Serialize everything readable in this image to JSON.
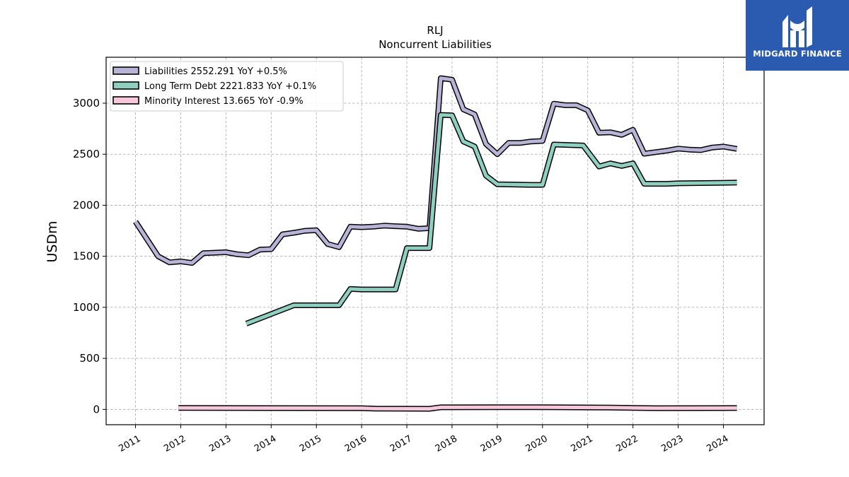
{
  "chart_data": {
    "type": "line",
    "title": "RLJ",
    "subtitle": "Noncurrent  Liabilities",
    "xlabel": "",
    "ylabel": "USDm",
    "ylim": [
      -150,
      3450
    ],
    "xlim": [
      2010.35,
      2024.9
    ],
    "yticks": [
      0,
      500,
      1000,
      1500,
      2000,
      2500,
      3000
    ],
    "xticks": [
      "2011",
      "2012",
      "2013",
      "2014",
      "2015",
      "2016",
      "2017",
      "2018",
      "2019",
      "2020",
      "2021",
      "2022",
      "2023",
      "2024"
    ],
    "grid": true,
    "legend_position": "top-left",
    "series": [
      {
        "name": "Liabilities  2552.291 YoY +0.5%",
        "color": "#b8b4d8",
        "points": [
          [
            2011.0,
            1840
          ],
          [
            2011.5,
            1500
          ],
          [
            2011.75,
            1440
          ],
          [
            2012.0,
            1450
          ],
          [
            2012.25,
            1435
          ],
          [
            2012.5,
            1530
          ],
          [
            2012.75,
            1535
          ],
          [
            2013.0,
            1540
          ],
          [
            2013.25,
            1520
          ],
          [
            2013.5,
            1510
          ],
          [
            2013.75,
            1565
          ],
          [
            2014.0,
            1570
          ],
          [
            2014.25,
            1715
          ],
          [
            2014.5,
            1730
          ],
          [
            2014.75,
            1750
          ],
          [
            2015.0,
            1755
          ],
          [
            2015.25,
            1620
          ],
          [
            2015.5,
            1590
          ],
          [
            2015.75,
            1790
          ],
          [
            2016.0,
            1785
          ],
          [
            2016.25,
            1790
          ],
          [
            2016.5,
            1800
          ],
          [
            2016.75,
            1795
          ],
          [
            2017.0,
            1790
          ],
          [
            2017.25,
            1770
          ],
          [
            2017.5,
            1775
          ],
          [
            2017.75,
            3245
          ],
          [
            2018.0,
            3230
          ],
          [
            2018.25,
            2940
          ],
          [
            2018.5,
            2890
          ],
          [
            2018.75,
            2600
          ],
          [
            2019.0,
            2500
          ],
          [
            2019.25,
            2610
          ],
          [
            2019.5,
            2610
          ],
          [
            2019.75,
            2625
          ],
          [
            2020.0,
            2630
          ],
          [
            2020.25,
            2995
          ],
          [
            2020.5,
            2980
          ],
          [
            2020.75,
            2980
          ],
          [
            2021.0,
            2930
          ],
          [
            2021.25,
            2710
          ],
          [
            2021.5,
            2715
          ],
          [
            2021.75,
            2690
          ],
          [
            2022.0,
            2740
          ],
          [
            2022.25,
            2505
          ],
          [
            2022.5,
            2520
          ],
          [
            2022.75,
            2535
          ],
          [
            2023.0,
            2555
          ],
          [
            2023.25,
            2545
          ],
          [
            2023.5,
            2540
          ],
          [
            2023.75,
            2565
          ],
          [
            2024.0,
            2575
          ],
          [
            2024.3,
            2552
          ]
        ]
      },
      {
        "name": "Long Term Debt  2221.833 YoY +0.1%",
        "color": "#8ecfc0",
        "points": [
          [
            2013.45,
            840
          ],
          [
            2014.5,
            1020
          ],
          [
            2015.5,
            1020
          ],
          [
            2015.75,
            1180
          ],
          [
            2016.0,
            1175
          ],
          [
            2016.75,
            1175
          ],
          [
            2017.0,
            1580
          ],
          [
            2017.5,
            1580
          ],
          [
            2017.75,
            2885
          ],
          [
            2018.0,
            2880
          ],
          [
            2018.25,
            2625
          ],
          [
            2018.5,
            2575
          ],
          [
            2018.75,
            2290
          ],
          [
            2019.0,
            2205
          ],
          [
            2019.75,
            2200
          ],
          [
            2020.0,
            2200
          ],
          [
            2020.25,
            2595
          ],
          [
            2020.9,
            2585
          ],
          [
            2021.25,
            2380
          ],
          [
            2021.5,
            2410
          ],
          [
            2021.75,
            2385
          ],
          [
            2022.0,
            2410
          ],
          [
            2022.25,
            2210
          ],
          [
            2022.75,
            2210
          ],
          [
            2023.0,
            2215
          ],
          [
            2024.3,
            2222
          ]
        ]
      },
      {
        "name": "Minority Interest  13.665 YoY -0.9%",
        "color": "#f7c8dc",
        "points": [
          [
            2011.95,
            15
          ],
          [
            2014.0,
            13
          ],
          [
            2016.0,
            12
          ],
          [
            2016.3,
            7
          ],
          [
            2017.5,
            6
          ],
          [
            2017.75,
            20
          ],
          [
            2019.0,
            22
          ],
          [
            2020.0,
            22
          ],
          [
            2021.5,
            18
          ],
          [
            2022.0,
            15
          ],
          [
            2022.5,
            12
          ],
          [
            2024.3,
            13.665
          ]
        ]
      }
    ]
  },
  "brand": {
    "name": "MIDGARD FINANCE",
    "background": "#2a5bb0",
    "icon": "midgard-logo-icon"
  }
}
